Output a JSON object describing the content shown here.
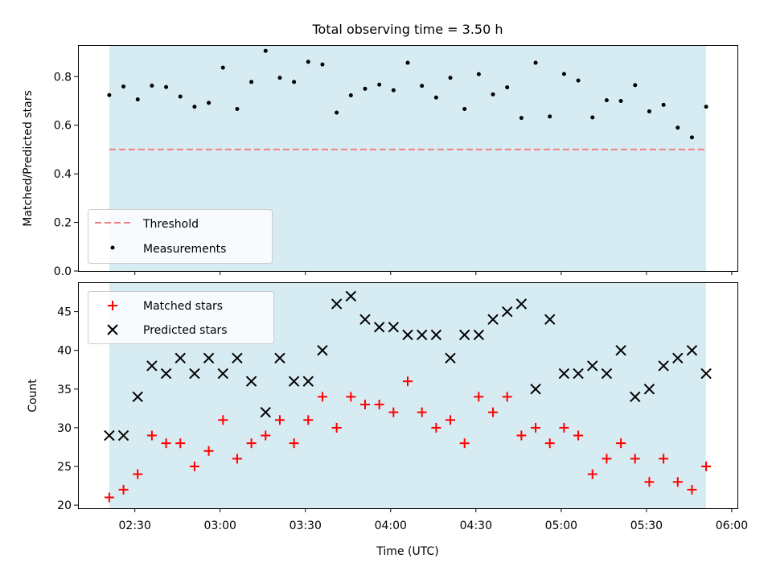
{
  "chart_data": [
    {
      "type": "scatter",
      "title": "Total observing time = 3.50 h",
      "ylabel": "Matched/Predicted stars",
      "xlabel": "",
      "x_unit": "time UTC",
      "xlim": [
        "02:10",
        "06:02"
      ],
      "ylim": [
        0,
        0.93
      ],
      "grid": false,
      "legend_position": "lower-left",
      "observing_window": [
        "02:21",
        "05:51"
      ],
      "observing_window_color": "#add8e6",
      "y_ticks": [
        "0.0",
        "0.2",
        "0.4",
        "0.6",
        "0.8"
      ],
      "series": [
        {
          "name": "Threshold",
          "type": "line",
          "style": "dashed",
          "color": "#f08080",
          "x": [
            "02:21",
            "05:51"
          ],
          "y": [
            0.5,
            0.5
          ]
        },
        {
          "name": "Measurements",
          "type": "scatter",
          "marker": "dot",
          "color": "#000000",
          "x": [
            "02:21",
            "02:26",
            "02:31",
            "02:36",
            "02:41",
            "02:46",
            "02:51",
            "02:56",
            "03:01",
            "03:06",
            "03:11",
            "03:16",
            "03:21",
            "03:26",
            "03:31",
            "03:36",
            "03:41",
            "03:46",
            "03:51",
            "03:56",
            "04:01",
            "04:06",
            "04:11",
            "04:16",
            "04:21",
            "04:26",
            "04:31",
            "04:36",
            "04:41",
            "04:46",
            "04:51",
            "04:56",
            "05:01",
            "05:06",
            "05:11",
            "05:16",
            "05:21",
            "05:26",
            "05:31",
            "05:36",
            "05:41",
            "05:46",
            "05:51"
          ],
          "y": [
            0.724,
            0.759,
            0.706,
            0.763,
            0.757,
            0.718,
            0.676,
            0.692,
            0.837,
            0.667,
            0.778,
            0.906,
            0.795,
            0.778,
            0.861,
            0.85,
            0.652,
            0.723,
            0.75,
            0.767,
            0.744,
            0.857,
            0.762,
            0.714,
            0.795,
            0.667,
            0.81,
            0.727,
            0.756,
            0.63,
            0.857,
            0.636,
            0.811,
            0.784,
            0.632,
            0.703,
            0.7,
            0.765,
            0.657,
            0.684,
            0.59,
            0.55,
            0.676
          ]
        }
      ]
    },
    {
      "type": "scatter",
      "title": "",
      "ylabel": "Count",
      "xlabel": "Time (UTC)",
      "x_unit": "time UTC",
      "xlim": [
        "02:10",
        "06:02"
      ],
      "ylim": [
        19.6,
        48.8
      ],
      "grid": false,
      "legend_position": "upper-left",
      "observing_window": [
        "02:21",
        "05:51"
      ],
      "observing_window_color": "#add8e6",
      "x_ticks": [
        "02:30",
        "03:00",
        "03:30",
        "04:00",
        "04:30",
        "05:00",
        "05:30",
        "06:00"
      ],
      "y_ticks": [
        "20",
        "25",
        "30",
        "35",
        "40",
        "45"
      ],
      "series": [
        {
          "name": "Matched stars",
          "type": "scatter",
          "marker": "plus",
          "color": "#ff0000",
          "x": [
            "02:21",
            "02:26",
            "02:31",
            "02:36",
            "02:41",
            "02:46",
            "02:51",
            "02:56",
            "03:01",
            "03:06",
            "03:11",
            "03:16",
            "03:21",
            "03:26",
            "03:31",
            "03:36",
            "03:41",
            "03:46",
            "03:51",
            "03:56",
            "04:01",
            "04:06",
            "04:11",
            "04:16",
            "04:21",
            "04:26",
            "04:31",
            "04:36",
            "04:41",
            "04:46",
            "04:51",
            "04:56",
            "05:01",
            "05:06",
            "05:11",
            "05:16",
            "05:21",
            "05:26",
            "05:31",
            "05:36",
            "05:41",
            "05:46",
            "05:51"
          ],
          "y": [
            21,
            22,
            24,
            29,
            28,
            28,
            25,
            27,
            31,
            26,
            28,
            29,
            31,
            28,
            31,
            34,
            30,
            34,
            33,
            33,
            32,
            36,
            32,
            30,
            31,
            28,
            34,
            32,
            34,
            29,
            30,
            28,
            30,
            29,
            24,
            26,
            28,
            26,
            23,
            26,
            23,
            22,
            25
          ]
        },
        {
          "name": "Predicted stars",
          "type": "scatter",
          "marker": "x",
          "color": "#000000",
          "x": [
            "02:21",
            "02:26",
            "02:31",
            "02:36",
            "02:41",
            "02:46",
            "02:51",
            "02:56",
            "03:01",
            "03:06",
            "03:11",
            "03:16",
            "03:21",
            "03:26",
            "03:31",
            "03:36",
            "03:41",
            "03:46",
            "03:51",
            "03:56",
            "04:01",
            "04:06",
            "04:11",
            "04:16",
            "04:21",
            "04:26",
            "04:31",
            "04:36",
            "04:41",
            "04:46",
            "04:51",
            "04:56",
            "05:01",
            "05:06",
            "05:11",
            "05:16",
            "05:21",
            "05:26",
            "05:31",
            "05:36",
            "05:41",
            "05:46",
            "05:51"
          ],
          "y": [
            29,
            29,
            34,
            38,
            37,
            39,
            37,
            39,
            37,
            39,
            36,
            32,
            39,
            36,
            36,
            40,
            46,
            47,
            44,
            43,
            43,
            42,
            42,
            42,
            39,
            42,
            42,
            44,
            45,
            46,
            35,
            44,
            37,
            37,
            38,
            37,
            40,
            34,
            35,
            38,
            39,
            40,
            37
          ]
        }
      ]
    }
  ]
}
